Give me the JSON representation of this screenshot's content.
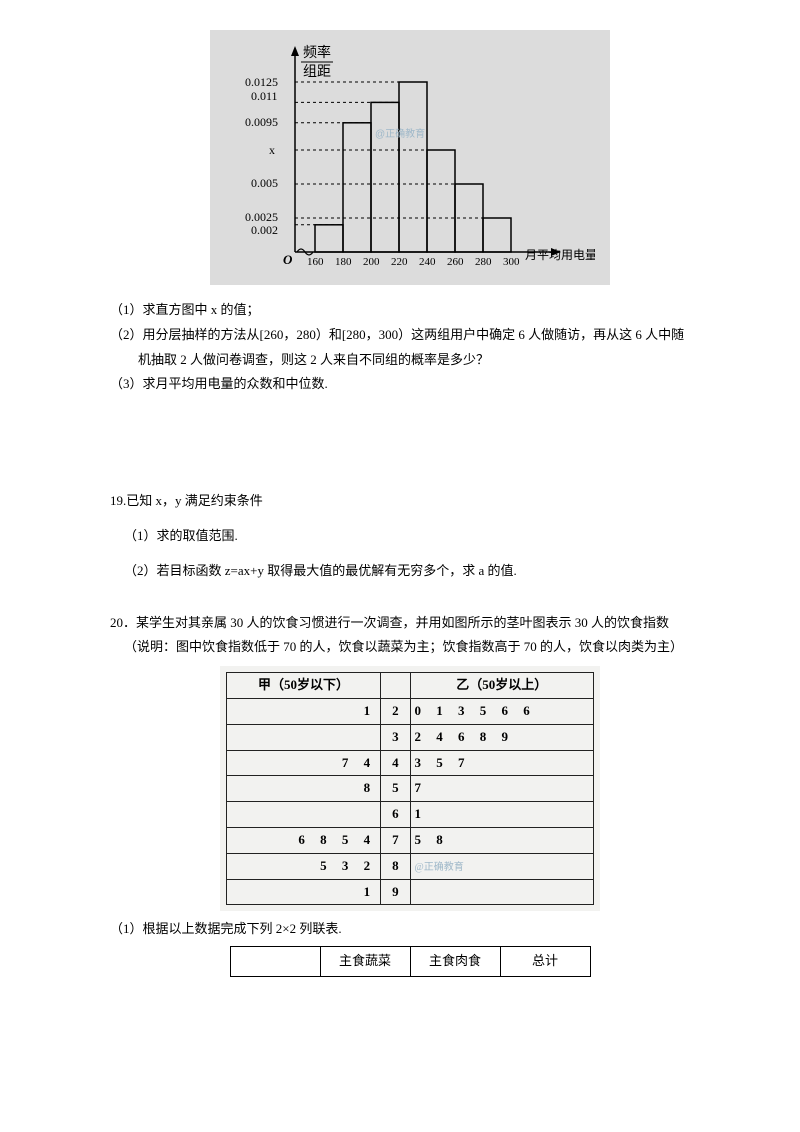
{
  "histogram": {
    "y_label_top": "频率",
    "y_label_bottom": "组距",
    "x_label": "月平均用电量/度",
    "y_ticks": [
      "0.0125",
      "0.011",
      "0.0095",
      "x",
      "0.005",
      "0.0025",
      "0.002"
    ],
    "x_ticks": [
      "160",
      "180",
      "200",
      "220",
      "240",
      "260",
      "280",
      "300"
    ],
    "watermark": "@正确教育"
  },
  "q18": {
    "s1": "（1）求直方图中 x 的值；",
    "s2": "（2）用分层抽样的方法从[260，280）和[280，300）这两组用户中确定 6 人做随访，再从这 6 人中随",
    "s2b": "机抽取 2 人做问卷调查，则这 2 人来自不同组的概率是多少？",
    "s3": "（3）求月平均用电量的众数和中位数."
  },
  "q19": {
    "head": "19.已知 x，y 满足约束条件",
    "s1": "（1）求的取值范围.",
    "s2": "（2）若目标函数 z=ax+y 取得最大值的最优解有无穷多个，求 a 的值."
  },
  "q20": {
    "head": "20．某学生对其亲属 30 人的饮食习惯进行一次调查，并用如图所示的茎叶图表示 30 人的饮食指数",
    "note": "（说明：图中饮食指数低于 70 的人，饮食以蔬菜为主；饮食指数高于 70 的人，饮食以肉类为主）",
    "s1": "（1）根据以上数据完成下列 2×2 列联表."
  },
  "stemleaf": {
    "left_header": "甲（50岁以下）",
    "right_header": "乙（50岁以上）",
    "watermark": "@正确教育",
    "rows": [
      {
        "left": "1",
        "stem": "2",
        "right": "0 1 3 5 6 6"
      },
      {
        "left": "",
        "stem": "3",
        "right": "2 4 6 8 9"
      },
      {
        "left": "7 4",
        "stem": "4",
        "right": "3 5 7"
      },
      {
        "left": "8",
        "stem": "5",
        "right": "7"
      },
      {
        "left": "",
        "stem": "6",
        "right": "1"
      },
      {
        "left": "6 8 5 4",
        "stem": "7",
        "right": "5 8"
      },
      {
        "left": "5 3 2",
        "stem": "8",
        "right": ""
      },
      {
        "left": "1",
        "stem": "9",
        "right": ""
      }
    ]
  },
  "contingency": {
    "h1": "主食蔬菜",
    "h2": "主食肉食",
    "h3": "总计"
  }
}
